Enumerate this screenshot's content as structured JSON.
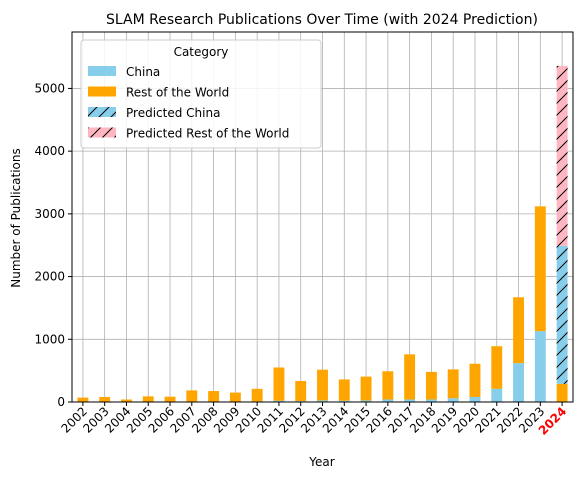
{
  "chart_data": {
    "type": "bar",
    "stacked": true,
    "title": "SLAM Research Publications Over Time (with 2024 Prediction)",
    "xlabel": "Year",
    "ylabel": "Number of Publications",
    "ylim": [
      0,
      5900
    ],
    "yticks": [
      0,
      1000,
      2000,
      3000,
      4000,
      5000
    ],
    "grid": true,
    "categories": [
      "2002",
      "2003",
      "2004",
      "2005",
      "2006",
      "2007",
      "2008",
      "2009",
      "2010",
      "2011",
      "2012",
      "2013",
      "2014",
      "2015",
      "2016",
      "2017",
      "2018",
      "2019",
      "2020",
      "2021",
      "2022",
      "2023",
      "2024"
    ],
    "highlight_category": "2024",
    "highlight_color": "#ff0000",
    "series": [
      {
        "name": "China",
        "color": "#87ceeb",
        "hatch": false,
        "values": [
          0,
          0,
          0,
          0,
          0,
          5,
          5,
          5,
          10,
          20,
          15,
          25,
          20,
          25,
          40,
          40,
          40,
          60,
          80,
          210,
          620,
          1130,
          null
        ]
      },
      {
        "name": "Rest of the World",
        "color": "#ffa500",
        "hatch": false,
        "values": [
          70,
          80,
          40,
          90,
          85,
          180,
          170,
          145,
          200,
          530,
          320,
          490,
          340,
          380,
          450,
          720,
          440,
          460,
          530,
          680,
          1050,
          1990,
          290
        ]
      },
      {
        "name": "Predicted China",
        "color": "#87ceeb",
        "hatch": true,
        "values": [
          null,
          null,
          null,
          null,
          null,
          null,
          null,
          null,
          null,
          null,
          null,
          null,
          null,
          null,
          null,
          null,
          null,
          null,
          null,
          null,
          null,
          null,
          2200
        ]
      },
      {
        "name": "Predicted Rest of the World",
        "color": "#ffb6c1",
        "hatch": true,
        "values": [
          null,
          null,
          null,
          null,
          null,
          null,
          null,
          null,
          null,
          null,
          null,
          null,
          null,
          null,
          null,
          null,
          null,
          null,
          null,
          null,
          null,
          null,
          2870
        ]
      }
    ],
    "legend": {
      "title": "Category",
      "position": "top-left"
    }
  }
}
